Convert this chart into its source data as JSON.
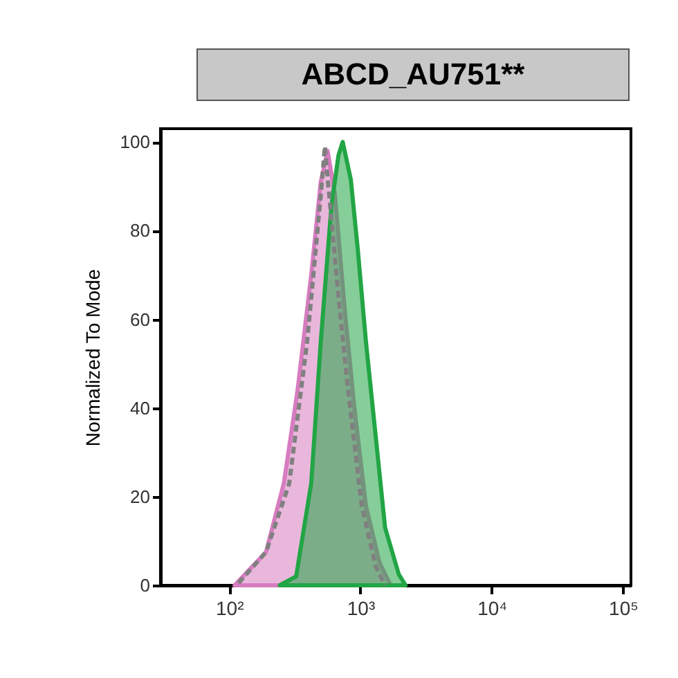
{
  "chart_data": {
    "type": "area",
    "title": "ABCD_AU751**",
    "ylabel": "Normalized To Mode",
    "log": "x",
    "xlim": [
      30,
      115000
    ],
    "xticks": [
      {
        "value": 100,
        "label": "10²"
      },
      {
        "value": 1000,
        "label": "10³"
      },
      {
        "value": 10000,
        "label": "10⁴"
      },
      {
        "value": 100000,
        "label": "10⁵"
      }
    ],
    "ylim": [
      0,
      103
    ],
    "yticks": [
      0,
      20,
      40,
      60,
      80,
      100
    ],
    "grid": false,
    "series": [
      {
        "color": "#d77cc0",
        "x": [
          110,
          191,
          261,
          332,
          422,
          499,
          562,
          640,
          760,
          900,
          1100,
          1400,
          1700
        ],
        "values": [
          0,
          7.5,
          23,
          44,
          70,
          91,
          98,
          88,
          62,
          40,
          18,
          5,
          0
        ]
      },
      {
        "color": "#22a545",
        "x": [
          243,
          324,
          422,
          499,
          603,
          681,
          733,
          845,
          953,
          1101,
          1303,
          1541,
          1958,
          2208
        ],
        "values": [
          0,
          2,
          23,
          55,
          86,
          97,
          100,
          91.5,
          76,
          55,
          34,
          13,
          2.5,
          0
        ]
      },
      {
        "type": "line",
        "line_style": "dashed",
        "color": "#808080",
        "x": [
          118,
          191,
          287,
          393,
          499,
          536,
          562,
          681,
          805,
          1023,
          1303,
          1541
        ],
        "values": [
          0.5,
          7.5,
          23,
          55,
          88,
          99,
          92,
          65,
          44,
          18,
          4.4,
          0
        ]
      }
    ]
  }
}
